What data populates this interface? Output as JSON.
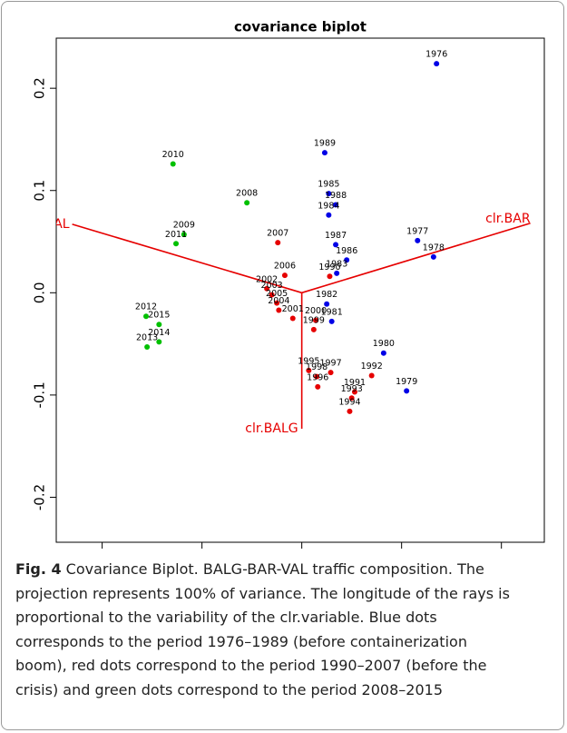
{
  "chart_data": {
    "type": "scatter",
    "title": "covariance biplot",
    "xlim": [
      -0.246,
      0.243
    ],
    "ylim": [
      -0.244,
      0.249
    ],
    "xticks": [
      -0.2,
      -0.1,
      {
        "value": 0,
        "label": "0.0"
      },
      0.1,
      0.2
    ],
    "yticks": [
      -0.2,
      -0.1,
      {
        "value": 0,
        "label": "0.0"
      },
      0.1,
      0.2
    ],
    "series": [
      {
        "color": "#0000e6",
        "labels": [
          "1976",
          "1989",
          "1985",
          "1988",
          "1984",
          "1987",
          "1986",
          "1983",
          "1977",
          "1978",
          "1982",
          "1981",
          "1980",
          "1979"
        ],
        "x": [
          0.135,
          0.023,
          0.027,
          0.034,
          0.027,
          0.034,
          0.045,
          0.035,
          0.116,
          0.132,
          0.025,
          0.03,
          0.082,
          0.105
        ],
        "values": [
          0.224,
          0.137,
          0.097,
          0.086,
          0.076,
          0.047,
          0.032,
          0.019,
          0.051,
          0.035,
          -0.011,
          -0.028,
          -0.059,
          -0.096
        ]
      },
      {
        "color": "#e60000",
        "labels": [
          "2007",
          "2006",
          "1990",
          "2002",
          "2003",
          "2005",
          "2004",
          "2001",
          "2000",
          "1999",
          "1995",
          "1997",
          "1998",
          "1996",
          "1992",
          "1991",
          "1993",
          "1994"
        ],
        "x": [
          -0.024,
          -0.017,
          0.028,
          -0.035,
          -0.03,
          -0.025,
          -0.023,
          -0.009,
          0.014,
          0.012,
          0.007,
          0.029,
          0.015,
          0.016,
          0.07,
          0.053,
          0.05,
          0.048
        ],
        "values": [
          0.049,
          0.017,
          0.016,
          0.004,
          -0.002,
          -0.01,
          -0.017,
          -0.025,
          -0.027,
          -0.036,
          -0.076,
          -0.078,
          -0.082,
          -0.092,
          -0.081,
          -0.097,
          -0.103,
          -0.116
        ]
      },
      {
        "color": "#00c000",
        "labels": [
          "2010",
          "2008",
          "2009",
          "2011",
          "2012",
          "2015",
          "2014",
          "2013"
        ],
        "x": [
          -0.129,
          -0.055,
          -0.118,
          -0.126,
          -0.156,
          -0.143,
          -0.143,
          -0.155
        ],
        "values": [
          0.126,
          0.088,
          0.057,
          0.048,
          -0.023,
          -0.031,
          -0.048,
          -0.053
        ]
      }
    ],
    "rays": {
      "color": "#e60000",
      "names": [
        "clr.BAR",
        "clr.VAL",
        "clr.BALG"
      ],
      "x": [
        0.229,
        -0.23,
        0
      ],
      "values": [
        0.068,
        0.067,
        -0.133
      ]
    }
  },
  "caption": {
    "label": "Fig. 4",
    "lines": [
      "Covariance Biplot. BALG-BAR-VAL traffic composition. The",
      "projection represents 100% of variance. The longitude of the rays is",
      "proportional to the variability of the clr.variable. Blue dots",
      "corresponds to the period 1976–1989 (before containerization",
      "boom), red dots correspond to the period 1990–2007 (before the",
      "crisis) and green dots correspond to the period 2008–2015"
    ]
  }
}
